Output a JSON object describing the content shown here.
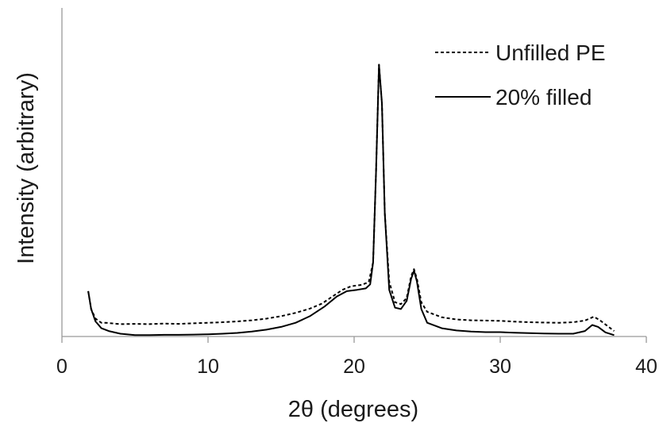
{
  "chart_data": {
    "type": "line",
    "xlabel": "2θ (degrees)",
    "ylabel": "Intensity (arbitrary)",
    "xlim": [
      0,
      40
    ],
    "ylim": [
      0,
      100
    ],
    "x_ticks": [
      "0",
      "10",
      "20",
      "30",
      "40"
    ],
    "y_ticks": [],
    "grid": false,
    "legend_position": "top-right",
    "series": [
      {
        "name": "Unfilled PE",
        "style": "dashed",
        "color": "#000000",
        "points": [
          [
            1.8,
            16.5
          ],
          [
            2.0,
            10
          ],
          [
            2.3,
            6.5
          ],
          [
            2.7,
            5
          ],
          [
            3,
            5
          ],
          [
            4,
            4.5
          ],
          [
            5,
            4.6
          ],
          [
            6,
            4.5
          ],
          [
            7,
            4.7
          ],
          [
            8,
            4.6
          ],
          [
            9,
            4.8
          ],
          [
            10,
            5
          ],
          [
            11,
            5.2
          ],
          [
            12,
            5.5
          ],
          [
            13,
            5.9
          ],
          [
            14,
            6.5
          ],
          [
            15,
            7.4
          ],
          [
            16,
            8.6
          ],
          [
            17,
            10.2
          ],
          [
            17.8,
            12
          ],
          [
            18.5,
            14.5
          ],
          [
            19.2,
            17
          ],
          [
            19.8,
            18.3
          ],
          [
            20.5,
            18.8
          ],
          [
            21.0,
            19.8
          ],
          [
            21.3,
            27
          ],
          [
            21.5,
            60
          ],
          [
            21.7,
            99
          ],
          [
            21.9,
            85
          ],
          [
            22.1,
            45
          ],
          [
            22.4,
            20
          ],
          [
            22.8,
            12.5
          ],
          [
            23.2,
            11.8
          ],
          [
            23.6,
            14
          ],
          [
            23.9,
            22
          ],
          [
            24.1,
            24.5
          ],
          [
            24.3,
            21
          ],
          [
            24.6,
            12.5
          ],
          [
            25,
            9
          ],
          [
            26,
            7
          ],
          [
            27,
            6.2
          ],
          [
            28,
            5.9
          ],
          [
            29,
            5.8
          ],
          [
            30,
            5.7
          ],
          [
            31,
            5.4
          ],
          [
            32,
            5.2
          ],
          [
            33,
            5.1
          ],
          [
            34,
            5
          ],
          [
            35,
            5.2
          ],
          [
            35.8,
            5.8
          ],
          [
            36.4,
            7.2
          ],
          [
            36.8,
            6
          ],
          [
            37.3,
            4
          ],
          [
            37.8,
            2
          ]
        ]
      },
      {
        "name": "20% filled",
        "style": "solid",
        "color": "#000000",
        "points": [
          [
            1.8,
            16.5
          ],
          [
            2.0,
            10
          ],
          [
            2.3,
            5.5
          ],
          [
            2.7,
            3
          ],
          [
            3.2,
            2
          ],
          [
            4,
            1
          ],
          [
            5,
            0.5
          ],
          [
            6,
            0.5
          ],
          [
            7,
            0.6
          ],
          [
            8,
            0.6
          ],
          [
            9,
            0.7
          ],
          [
            10,
            0.8
          ],
          [
            11,
            1
          ],
          [
            12,
            1.3
          ],
          [
            13,
            1.8
          ],
          [
            14,
            2.5
          ],
          [
            15,
            3.5
          ],
          [
            16,
            5
          ],
          [
            17,
            7.5
          ],
          [
            18,
            11
          ],
          [
            18.8,
            14.5
          ],
          [
            19.5,
            16.5
          ],
          [
            20.2,
            17
          ],
          [
            20.8,
            17.5
          ],
          [
            21.1,
            19
          ],
          [
            21.3,
            27
          ],
          [
            21.5,
            60
          ],
          [
            21.7,
            99
          ],
          [
            21.9,
            85
          ],
          [
            22.1,
            45
          ],
          [
            22.4,
            17
          ],
          [
            22.8,
            10.5
          ],
          [
            23.2,
            10
          ],
          [
            23.6,
            13
          ],
          [
            23.9,
            21
          ],
          [
            24.1,
            24
          ],
          [
            24.3,
            20
          ],
          [
            24.6,
            10
          ],
          [
            25,
            5
          ],
          [
            26,
            3
          ],
          [
            27,
            2.2
          ],
          [
            28,
            1.8
          ],
          [
            29,
            1.6
          ],
          [
            30,
            1.6
          ],
          [
            31,
            1.4
          ],
          [
            32,
            1.2
          ],
          [
            33,
            1.1
          ],
          [
            34,
            1
          ],
          [
            35,
            1
          ],
          [
            35.8,
            2
          ],
          [
            36.3,
            4.2
          ],
          [
            36.7,
            3.5
          ],
          [
            37.2,
            1.5
          ],
          [
            37.8,
            0.5
          ]
        ]
      }
    ]
  }
}
